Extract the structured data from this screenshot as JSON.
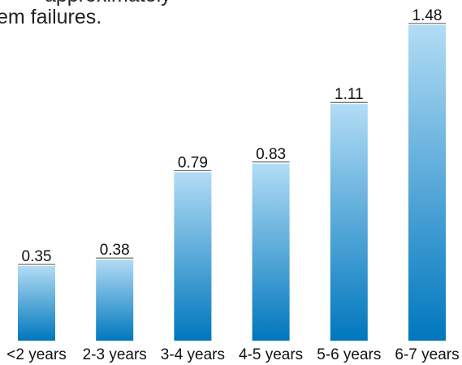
{
  "caption": {
    "line1": "approximately",
    "line2": "em failures."
  },
  "chart_data": {
    "type": "bar",
    "title": "",
    "xlabel": "",
    "ylabel": "",
    "categories": [
      "<2 years",
      "2-3 years",
      "3-4 years",
      "4-5 years",
      "5-6 years",
      "6-7 years"
    ],
    "values": [
      0.35,
      0.38,
      0.79,
      0.83,
      1.11,
      1.48
    ],
    "value_labels": [
      "0.35",
      "0.38",
      "0.79",
      "0.83",
      "1.11",
      "1.48"
    ],
    "ylim": [
      0,
      1.48
    ],
    "grid": false,
    "legend": "none",
    "colors": {
      "bar_top": "#b2dcf5",
      "bar_bottom": "#0077bd",
      "value_underline": "#4a4a4a"
    }
  }
}
